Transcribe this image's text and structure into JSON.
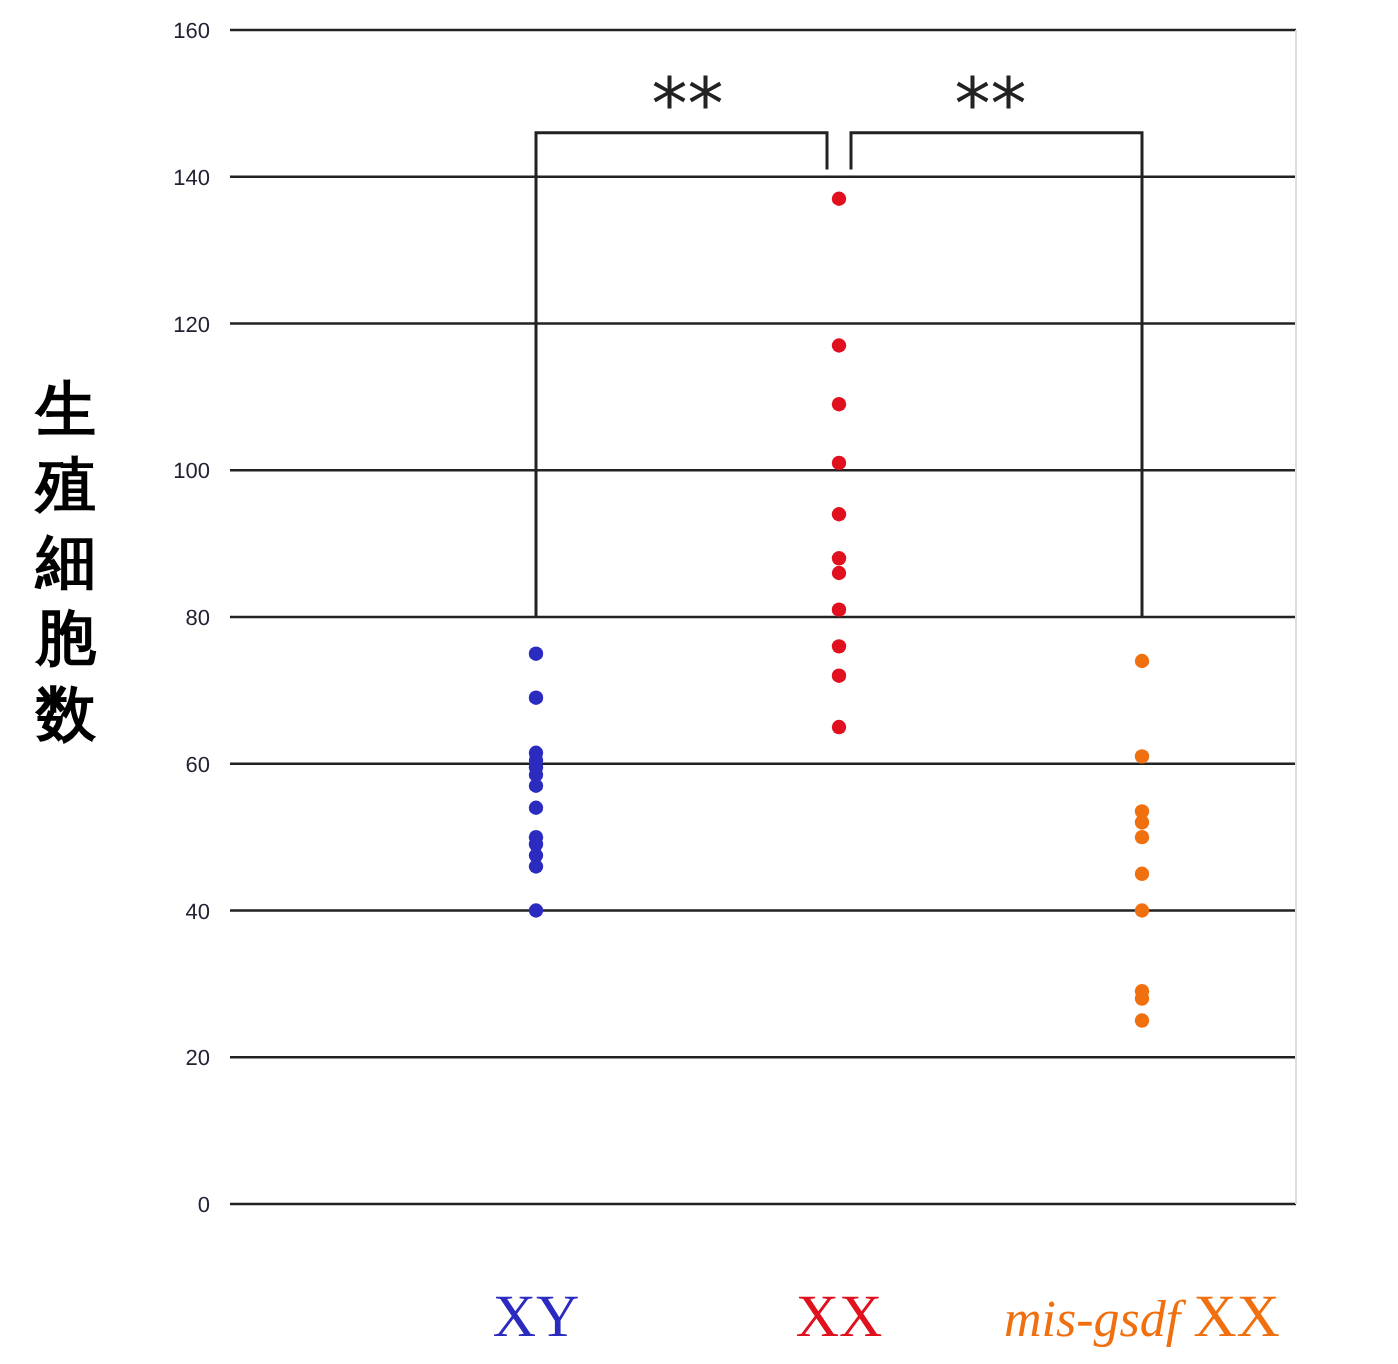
{
  "chart_data": {
    "type": "scatter",
    "ylabel": "生殖細胞数",
    "categories": [
      "XY",
      "XX",
      "mis-gsdf XX"
    ],
    "series": [
      {
        "color": "#2b2bc0",
        "x": [
          "XY",
          "XY",
          "XY",
          "XY",
          "XY",
          "XY",
          "XY",
          "XY",
          "XY",
          "XY",
          "XY",
          "XY",
          "XY"
        ],
        "values": [
          75,
          69,
          61.5,
          60.5,
          59.5,
          58.5,
          57,
          54,
          50,
          49,
          47.5,
          46,
          40
        ]
      },
      {
        "color": "#e0101e",
        "x": [
          "XX",
          "XX",
          "XX",
          "XX",
          "XX",
          "XX",
          "XX",
          "XX",
          "XX",
          "XX",
          "XX"
        ],
        "values": [
          137,
          117,
          109,
          101,
          94,
          88,
          86,
          81,
          76,
          72,
          65
        ]
      },
      {
        "color": "#f07010",
        "x": [
          "mis-gsdf XX",
          "mis-gsdf XX",
          "mis-gsdf XX",
          "mis-gsdf XX",
          "mis-gsdf XX",
          "mis-gsdf XX",
          "mis-gsdf XX",
          "mis-gsdf XX",
          "mis-gsdf XX",
          "mis-gsdf XX"
        ],
        "values": [
          74,
          61,
          53.5,
          52,
          50,
          45,
          40,
          29,
          28,
          25
        ]
      }
    ],
    "ylim": [
      0,
      160
    ],
    "yticks": [
      0,
      20,
      40,
      60,
      80,
      100,
      120,
      140,
      160
    ],
    "grid": "y",
    "marker": "circle",
    "annotations": [
      "**",
      "**"
    ]
  }
}
